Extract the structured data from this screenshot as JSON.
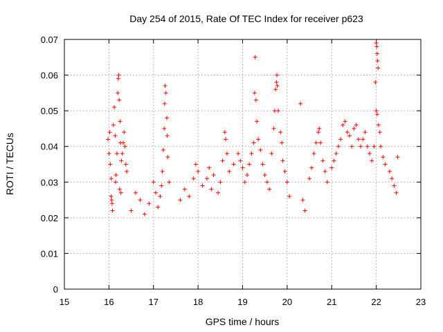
{
  "chart_data": {
    "type": "scatter",
    "title": "Day 254 of 2015, Rate Of TEC Index for receiver p623",
    "xlabel": "GPS time / hours",
    "ylabel": "ROTI / TECUs",
    "xlim": [
      15,
      23
    ],
    "ylim": [
      0,
      0.07
    ],
    "x_ticks": [
      "15",
      "16",
      "17",
      "18",
      "19",
      "20",
      "21",
      "22",
      "23"
    ],
    "y_ticks": [
      "0",
      "0.01",
      "0.02",
      "0.03",
      "0.04",
      "0.05",
      "0.06",
      "0.07"
    ],
    "grid": true,
    "marker": "plus",
    "color": "#ff0000",
    "series": [
      {
        "name": "ROTI",
        "points": [
          [
            15.98,
            0.042
          ],
          [
            16.0,
            0.038
          ],
          [
            16.02,
            0.044
          ],
          [
            16.03,
            0.035
          ],
          [
            16.05,
            0.031
          ],
          [
            16.06,
            0.025
          ],
          [
            16.08,
            0.022
          ],
          [
            16.1,
            0.046
          ],
          [
            16.12,
            0.051
          ],
          [
            16.14,
            0.043
          ],
          [
            16.16,
            0.032
          ],
          [
            16.18,
            0.038
          ],
          [
            16.2,
            0.055
          ],
          [
            16.21,
            0.059
          ],
          [
            16.22,
            0.06
          ],
          [
            16.23,
            0.053
          ],
          [
            16.25,
            0.047
          ],
          [
            16.26,
            0.041
          ],
          [
            16.28,
            0.036
          ],
          [
            16.3,
            0.038
          ],
          [
            16.32,
            0.041
          ],
          [
            16.34,
            0.044
          ],
          [
            16.36,
            0.04
          ],
          [
            16.38,
            0.035
          ],
          [
            16.4,
            0.033
          ],
          [
            16.05,
            0.026
          ],
          [
            16.07,
            0.024
          ],
          [
            16.24,
            0.028
          ],
          [
            16.27,
            0.027
          ],
          [
            16.15,
            0.03
          ],
          [
            16.5,
            0.022
          ],
          [
            16.6,
            0.027
          ],
          [
            16.7,
            0.025
          ],
          [
            16.8,
            0.021
          ],
          [
            16.9,
            0.024
          ],
          [
            17.0,
            0.03
          ],
          [
            17.05,
            0.027
          ],
          [
            17.1,
            0.023
          ],
          [
            17.15,
            0.026
          ],
          [
            17.2,
            0.033
          ],
          [
            17.22,
            0.039
          ],
          [
            17.24,
            0.045
          ],
          [
            17.25,
            0.052
          ],
          [
            17.26,
            0.057
          ],
          [
            17.28,
            0.055
          ],
          [
            17.3,
            0.048
          ],
          [
            17.31,
            0.043
          ],
          [
            17.32,
            0.037
          ],
          [
            17.35,
            0.03
          ],
          [
            17.18,
            0.029
          ],
          [
            17.6,
            0.025
          ],
          [
            17.7,
            0.028
          ],
          [
            17.8,
            0.026
          ],
          [
            17.9,
            0.031
          ],
          [
            17.95,
            0.035
          ],
          [
            18.0,
            0.033
          ],
          [
            18.1,
            0.029
          ],
          [
            18.2,
            0.031
          ],
          [
            18.25,
            0.034
          ],
          [
            18.3,
            0.028
          ],
          [
            18.35,
            0.032
          ],
          [
            18.45,
            0.027
          ],
          [
            18.5,
            0.03
          ],
          [
            18.55,
            0.036
          ],
          [
            18.6,
            0.044
          ],
          [
            18.62,
            0.042
          ],
          [
            18.65,
            0.038
          ],
          [
            18.7,
            0.033
          ],
          [
            18.8,
            0.035
          ],
          [
            18.9,
            0.038
          ],
          [
            18.95,
            0.036
          ],
          [
            19.0,
            0.034
          ],
          [
            19.05,
            0.03
          ],
          [
            19.1,
            0.032
          ],
          [
            19.15,
            0.035
          ],
          [
            19.2,
            0.038
          ],
          [
            19.25,
            0.041
          ],
          [
            19.27,
            0.055
          ],
          [
            19.28,
            0.065
          ],
          [
            19.3,
            0.053
          ],
          [
            19.32,
            0.047
          ],
          [
            19.35,
            0.042
          ],
          [
            19.4,
            0.039
          ],
          [
            19.45,
            0.035
          ],
          [
            19.5,
            0.032
          ],
          [
            19.55,
            0.03
          ],
          [
            19.6,
            0.028
          ],
          [
            19.65,
            0.038
          ],
          [
            19.7,
            0.045
          ],
          [
            19.72,
            0.05
          ],
          [
            19.74,
            0.056
          ],
          [
            19.76,
            0.058
          ],
          [
            19.77,
            0.06
          ],
          [
            19.78,
            0.057
          ],
          [
            19.8,
            0.05
          ],
          [
            19.85,
            0.044
          ],
          [
            19.88,
            0.041
          ],
          [
            19.9,
            0.036
          ],
          [
            19.95,
            0.033
          ],
          [
            20.0,
            0.03
          ],
          [
            20.05,
            0.026
          ],
          [
            20.3,
            0.052
          ],
          [
            20.35,
            0.025
          ],
          [
            20.4,
            0.022
          ],
          [
            20.5,
            0.031
          ],
          [
            20.55,
            0.034
          ],
          [
            20.6,
            0.038
          ],
          [
            20.65,
            0.041
          ],
          [
            20.7,
            0.044
          ],
          [
            20.72,
            0.045
          ],
          [
            20.75,
            0.041
          ],
          [
            20.8,
            0.036
          ],
          [
            20.85,
            0.033
          ],
          [
            20.9,
            0.03
          ],
          [
            21.0,
            0.034
          ],
          [
            21.05,
            0.036
          ],
          [
            21.1,
            0.038
          ],
          [
            21.15,
            0.04
          ],
          [
            21.2,
            0.042
          ],
          [
            21.25,
            0.046
          ],
          [
            21.3,
            0.047
          ],
          [
            21.35,
            0.044
          ],
          [
            21.4,
            0.043
          ],
          [
            21.45,
            0.04
          ],
          [
            21.5,
            0.045
          ],
          [
            21.55,
            0.046
          ],
          [
            21.6,
            0.042
          ],
          [
            21.65,
            0.04
          ],
          [
            21.7,
            0.042
          ],
          [
            21.75,
            0.044
          ],
          [
            21.8,
            0.04
          ],
          [
            21.85,
            0.038
          ],
          [
            21.9,
            0.036
          ],
          [
            21.95,
            0.04
          ],
          [
            21.98,
            0.058
          ],
          [
            22.0,
            0.069
          ],
          [
            22.01,
            0.068
          ],
          [
            22.02,
            0.066
          ],
          [
            22.03,
            0.064
          ],
          [
            22.04,
            0.062
          ],
          [
            22.0,
            0.05
          ],
          [
            22.02,
            0.049
          ],
          [
            22.05,
            0.046
          ],
          [
            22.08,
            0.044
          ],
          [
            22.1,
            0.04
          ],
          [
            22.15,
            0.037
          ],
          [
            22.2,
            0.035
          ],
          [
            22.3,
            0.033
          ],
          [
            22.35,
            0.031
          ],
          [
            22.4,
            0.029
          ],
          [
            22.45,
            0.027
          ],
          [
            22.48,
            0.037
          ]
        ]
      }
    ]
  }
}
